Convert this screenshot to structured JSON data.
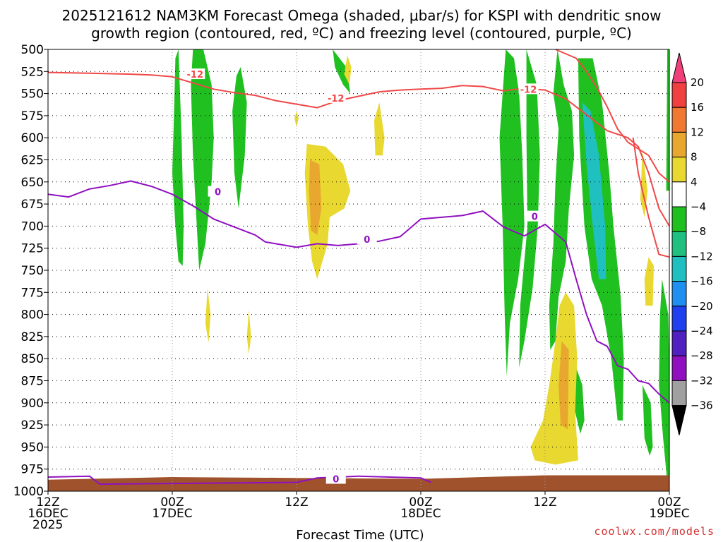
{
  "chart_data": {
    "type": "heatmap",
    "title": "2025121612 NAM3KM Forecast Omega (shaded, μbar/s) for KSPI with dendritic snow",
    "subtitle": "growth region (contoured, red, ºC) and freezing level (contoured, purple, ºC)",
    "xlabel": "Forecast Time (UTC)",
    "ylabel": "",
    "credit": "coolwx.com/models",
    "y_ticks": [
      "500",
      "525",
      "550",
      "575",
      "600",
      "625",
      "650",
      "675",
      "700",
      "725",
      "750",
      "775",
      "800",
      "825",
      "850",
      "875",
      "900",
      "925",
      "950",
      "975",
      "1000"
    ],
    "ylim": [
      1000,
      500
    ],
    "x_ticks": [
      {
        "hours": 0,
        "line1": "12Z",
        "line2": "16DEC",
        "line3": "2025"
      },
      {
        "hours": 12,
        "line1": "00Z",
        "line2": "17DEC",
        "line3": ""
      },
      {
        "hours": 24,
        "line1": "12Z",
        "line2": "",
        "line3": ""
      },
      {
        "hours": 36,
        "line1": "00Z",
        "line2": "18DEC",
        "line3": ""
      },
      {
        "hours": 48,
        "line1": "12Z",
        "line2": "",
        "line3": ""
      },
      {
        "hours": 60,
        "line1": "00Z",
        "line2": "19DEC",
        "line3": ""
      }
    ],
    "xlim": [
      0,
      60
    ],
    "colorbar": {
      "levels": [
        20,
        16,
        12,
        8,
        4,
        -4,
        -8,
        -12,
        -16,
        -20,
        -24,
        -28,
        -32,
        -36
      ],
      "colors": [
        "#f0407a",
        "#f04040",
        "#f07830",
        "#e8a830",
        "#e8d830",
        "#ffffff",
        "#20c020",
        "#20c080",
        "#20c0c0",
        "#2090f0",
        "#2040f0",
        "#5020c0",
        "#9010c0",
        "#a0a0a0",
        "#000000"
      ]
    },
    "freezing_level_label": "0",
    "dgz_label": "-12",
    "dgz_top_line": [
      [
        0,
        526
      ],
      [
        4,
        527
      ],
      [
        8,
        528
      ],
      [
        10,
        529
      ],
      [
        12,
        531
      ],
      [
        14,
        538
      ],
      [
        16,
        545
      ],
      [
        18,
        549
      ],
      [
        20,
        552
      ],
      [
        22,
        558
      ],
      [
        24,
        562
      ],
      [
        26,
        566
      ],
      [
        28,
        558
      ],
      [
        30,
        553
      ],
      [
        32,
        548
      ],
      [
        34,
        546
      ],
      [
        36,
        545
      ],
      [
        38,
        544
      ],
      [
        40,
        541
      ],
      [
        42,
        542
      ],
      [
        44,
        547
      ],
      [
        46,
        544
      ],
      [
        48,
        546
      ],
      [
        50,
        556
      ],
      [
        52,
        574
      ],
      [
        54,
        592
      ],
      [
        56,
        600
      ],
      [
        57,
        610
      ],
      [
        58,
        640
      ],
      [
        59,
        680
      ],
      [
        60,
        700
      ]
    ],
    "dgz_right_line": [
      [
        49,
        500
      ],
      [
        51,
        510
      ],
      [
        52,
        525
      ],
      [
        53,
        543
      ],
      [
        54,
        565
      ],
      [
        55,
        590
      ],
      [
        56,
        605
      ],
      [
        58,
        620
      ],
      [
        59,
        640
      ],
      [
        60,
        650
      ]
    ],
    "dgz_low_line": [
      [
        56.5,
        600
      ],
      [
        57,
        640
      ],
      [
        58,
        690
      ],
      [
        59,
        732
      ],
      [
        60,
        735
      ]
    ],
    "freezing_line": [
      [
        0,
        664
      ],
      [
        2,
        667
      ],
      [
        4,
        658
      ],
      [
        6,
        654
      ],
      [
        8,
        649
      ],
      [
        10,
        655
      ],
      [
        12,
        664
      ],
      [
        14,
        677
      ],
      [
        16,
        692
      ],
      [
        18,
        701
      ],
      [
        20,
        710
      ],
      [
        21,
        718
      ],
      [
        22,
        720
      ],
      [
        24,
        724
      ],
      [
        26,
        720
      ],
      [
        28,
        722
      ],
      [
        30,
        720
      ],
      [
        32,
        717
      ],
      [
        34,
        712
      ],
      [
        36,
        692
      ],
      [
        38,
        690
      ],
      [
        40,
        688
      ],
      [
        42,
        683
      ],
      [
        44,
        701
      ],
      [
        46,
        711
      ],
      [
        48,
        698
      ],
      [
        50,
        718
      ],
      [
        51,
        760
      ],
      [
        52,
        800
      ],
      [
        53,
        830
      ],
      [
        54,
        836
      ],
      [
        55,
        858
      ],
      [
        56,
        862
      ],
      [
        57,
        875
      ],
      [
        58,
        878
      ],
      [
        59,
        890
      ],
      [
        60,
        900
      ]
    ],
    "freezing_surface_line": [
      [
        0,
        984
      ],
      [
        4,
        983
      ],
      [
        5,
        992
      ],
      [
        24,
        990
      ],
      [
        26,
        985
      ],
      [
        30,
        983
      ],
      [
        36,
        985
      ],
      [
        37,
        990
      ]
    ],
    "omega_shapes": [
      {
        "color": "#20c020",
        "pts": [
          [
            12.6,
            500
          ],
          [
            12.9,
            600
          ],
          [
            13.1,
            700
          ],
          [
            13.0,
            745
          ],
          [
            12.6,
            740
          ],
          [
            12.3,
            700
          ],
          [
            12.0,
            640
          ],
          [
            12.2,
            560
          ],
          [
            12.3,
            510
          ]
        ]
      },
      {
        "color": "#20c020",
        "pts": [
          [
            14.0,
            500
          ],
          [
            15.0,
            500
          ],
          [
            15.8,
            540
          ],
          [
            16.0,
            600
          ],
          [
            15.8,
            650
          ],
          [
            15.2,
            720
          ],
          [
            14.6,
            750
          ],
          [
            14.0,
            620
          ],
          [
            13.8,
            540
          ]
        ]
      },
      {
        "color": "#20c020",
        "pts": [
          [
            18.6,
            520
          ],
          [
            19.2,
            560
          ],
          [
            19.0,
            620
          ],
          [
            18.4,
            680
          ],
          [
            18.0,
            640
          ],
          [
            17.8,
            570
          ],
          [
            18.2,
            530
          ]
        ]
      },
      {
        "color": "#20c020",
        "pts": [
          [
            27.5,
            500
          ],
          [
            28.8,
            520
          ],
          [
            29.2,
            550
          ],
          [
            28.5,
            540
          ],
          [
            27.7,
            520
          ]
        ]
      },
      {
        "color": "#20c020",
        "pts": [
          [
            44.2,
            500
          ],
          [
            45.0,
            510
          ],
          [
            45.5,
            550
          ],
          [
            45.8,
            620
          ],
          [
            46.0,
            700
          ],
          [
            45.4,
            760
          ],
          [
            44.6,
            810
          ],
          [
            44.3,
            870
          ],
          [
            44.1,
            800
          ],
          [
            43.9,
            700
          ],
          [
            43.6,
            600
          ]
        ]
      },
      {
        "color": "#20c020",
        "pts": [
          [
            46.2,
            500
          ],
          [
            47.2,
            540
          ],
          [
            47.5,
            620
          ],
          [
            47.3,
            700
          ],
          [
            46.8,
            770
          ],
          [
            46.0,
            830
          ],
          [
            45.5,
            860
          ],
          [
            45.6,
            790
          ],
          [
            46.3,
            700
          ],
          [
            46.2,
            600
          ]
        ]
      },
      {
        "color": "#20c020",
        "pts": [
          [
            49.2,
            500
          ],
          [
            49.8,
            540
          ],
          [
            50.6,
            570
          ],
          [
            50.8,
            620
          ],
          [
            50.3,
            680
          ],
          [
            50.0,
            740
          ],
          [
            49.3,
            780
          ],
          [
            49.0,
            830
          ],
          [
            48.5,
            840
          ],
          [
            48.4,
            790
          ],
          [
            48.8,
            720
          ],
          [
            49.0,
            650
          ],
          [
            49.3,
            590
          ],
          [
            48.8,
            550
          ]
        ]
      },
      {
        "color": "#20c020",
        "pts": [
          [
            51.2,
            510
          ],
          [
            52.6,
            510
          ],
          [
            53.5,
            560
          ],
          [
            54.2,
            640
          ],
          [
            54.6,
            700
          ],
          [
            55.3,
            780
          ],
          [
            55.6,
            850
          ],
          [
            55.5,
            920
          ],
          [
            55.0,
            920
          ],
          [
            54.4,
            850
          ],
          [
            53.5,
            790
          ],
          [
            52.5,
            760
          ],
          [
            51.8,
            700
          ],
          [
            51.3,
            600
          ]
        ]
      },
      {
        "color": "#20c0c0",
        "pts": [
          [
            51.6,
            560
          ],
          [
            52.4,
            570
          ],
          [
            53.2,
            620
          ],
          [
            53.8,
            700
          ],
          [
            53.9,
            760
          ],
          [
            53.2,
            760
          ],
          [
            52.6,
            700
          ],
          [
            52.0,
            630
          ]
        ]
      },
      {
        "color": "#20c020",
        "pts": [
          [
            57.4,
            880
          ],
          [
            58.2,
            900
          ],
          [
            58.4,
            950
          ],
          [
            58.1,
            960
          ],
          [
            57.6,
            940
          ]
        ]
      },
      {
        "color": "#20c020",
        "pts": [
          [
            59.3,
            760
          ],
          [
            59.9,
            800
          ],
          [
            60,
            860
          ],
          [
            60,
            980
          ],
          [
            59.8,
            990
          ],
          [
            59.4,
            940
          ],
          [
            59.0,
            880
          ],
          [
            59.1,
            800
          ]
        ]
      },
      {
        "color": "#20c020",
        "pts": [
          [
            59.8,
            500
          ],
          [
            60,
            500
          ],
          [
            60,
            660
          ],
          [
            59.7,
            660
          ]
        ]
      },
      {
        "color": "#20c020",
        "pts": [
          [
            51.0,
            860
          ],
          [
            51.6,
            880
          ],
          [
            51.8,
            920
          ],
          [
            51.4,
            935
          ],
          [
            50.9,
            910
          ]
        ]
      },
      {
        "color": "#e8d830",
        "pts": [
          [
            25.0,
            607
          ],
          [
            26.8,
            610
          ],
          [
            28.5,
            630
          ],
          [
            29.2,
            660
          ],
          [
            28.6,
            680
          ],
          [
            27.2,
            690
          ],
          [
            27.0,
            720
          ],
          [
            26.0,
            760
          ],
          [
            25.5,
            740
          ],
          [
            25.1,
            700
          ],
          [
            24.8,
            640
          ]
        ]
      },
      {
        "color": "#e8a830",
        "pts": [
          [
            25.3,
            625
          ],
          [
            26.2,
            630
          ],
          [
            26.4,
            680
          ],
          [
            26.0,
            710
          ],
          [
            25.4,
            705
          ],
          [
            25.2,
            660
          ]
        ]
      },
      {
        "color": "#e8d830",
        "pts": [
          [
            31.5,
            580
          ],
          [
            32.0,
            560
          ],
          [
            32.5,
            600
          ],
          [
            32.3,
            620
          ],
          [
            31.6,
            620
          ]
        ]
      },
      {
        "color": "#e8d830",
        "pts": [
          [
            24.0,
            570
          ],
          [
            24.2,
            578
          ],
          [
            24.0,
            588
          ],
          [
            23.8,
            578
          ]
        ]
      },
      {
        "color": "#e8d830",
        "pts": [
          [
            50.0,
            775
          ],
          [
            50.8,
            790
          ],
          [
            51.1,
            850
          ],
          [
            50.9,
            910
          ],
          [
            51.2,
            965
          ],
          [
            49.0,
            970
          ],
          [
            47.0,
            965
          ],
          [
            46.6,
            950
          ],
          [
            47.8,
            920
          ],
          [
            48.4,
            880
          ],
          [
            49.0,
            830
          ],
          [
            49.4,
            790
          ]
        ]
      },
      {
        "color": "#e8a830",
        "pts": [
          [
            49.6,
            830
          ],
          [
            50.3,
            840
          ],
          [
            50.2,
            930
          ],
          [
            49.5,
            925
          ],
          [
            49.3,
            880
          ]
        ]
      },
      {
        "color": "#e8d830",
        "pts": [
          [
            58.0,
            735
          ],
          [
            58.5,
            745
          ],
          [
            58.4,
            790
          ],
          [
            57.7,
            790
          ],
          [
            57.6,
            760
          ]
        ]
      },
      {
        "color": "#e8d830",
        "pts": [
          [
            57.4,
            615
          ],
          [
            57.9,
            660
          ],
          [
            57.6,
            690
          ],
          [
            57.2,
            670
          ]
        ]
      },
      {
        "color": "#e8d830",
        "pts": [
          [
            15.4,
            770
          ],
          [
            15.7,
            800
          ],
          [
            15.5,
            832
          ],
          [
            15.2,
            810
          ]
        ]
      },
      {
        "color": "#e8d830",
        "pts": [
          [
            19.4,
            795
          ],
          [
            19.6,
            825
          ],
          [
            19.4,
            845
          ],
          [
            19.2,
            825
          ]
        ]
      },
      {
        "color": "#e8d830",
        "pts": [
          [
            28.9,
            507
          ],
          [
            29.3,
            520
          ],
          [
            29.1,
            540
          ],
          [
            28.6,
            528
          ]
        ]
      }
    ]
  }
}
